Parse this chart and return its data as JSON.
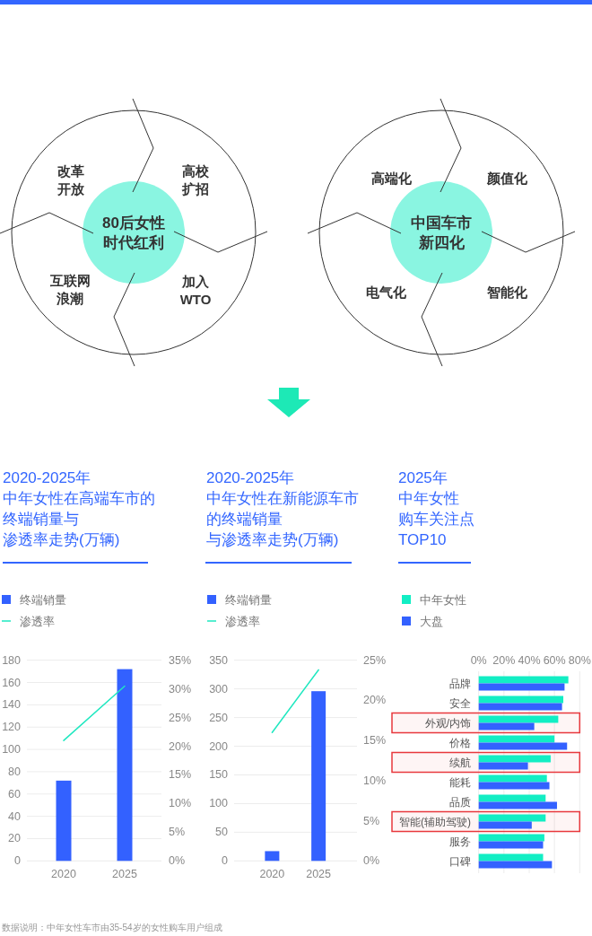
{
  "chart_data": [
    {
      "type": "other",
      "title": "80后女性时代红利",
      "annotations": [
        "改革开放",
        "高校扩招",
        "加入WTO",
        "互联网浪潮"
      ]
    },
    {
      "type": "other",
      "title": "中国车市新四化",
      "annotations": [
        "高端化",
        "颜值化",
        "智能化",
        "电气化"
      ]
    },
    {
      "type": "bar",
      "title": "2020-2025年中年女性在高端车市的终端销量与渗透率走势(万辆)",
      "categories": [
        "2020",
        "2025"
      ],
      "series": [
        {
          "name": "终端销量",
          "type": "bar",
          "color": "#3361ff",
          "values": [
            72,
            172
          ]
        },
        {
          "name": "渗透率",
          "type": "line",
          "axis": "y2",
          "color": "#1ee8c0",
          "values": [
            21,
            30.5
          ]
        }
      ],
      "ylim": [
        0,
        180
      ],
      "yticks": [
        0,
        20,
        40,
        60,
        80,
        100,
        120,
        140,
        160,
        180
      ],
      "y2lim": [
        0,
        35
      ],
      "y2ticks": [
        {
          "value": 0,
          "label": "0%"
        },
        {
          "value": 5,
          "label": "5%"
        },
        {
          "value": 10,
          "label": "10%"
        },
        {
          "value": 15,
          "label": "15%"
        },
        {
          "value": 20,
          "label": "20%"
        },
        {
          "value": 25,
          "label": "25%"
        },
        {
          "value": 30,
          "label": "30%"
        },
        {
          "value": 35,
          "label": "35%"
        }
      ],
      "grid": "y",
      "legend": "top left",
      "annotations": [
        "数据说明：中年女性车市由35-54岁的女性购车用户组成"
      ]
    },
    {
      "type": "bar",
      "title": "2020-2025年中年女性在新能源车市的终端销量与渗透率走势(万辆)",
      "categories": [
        "2020",
        "2025"
      ],
      "series": [
        {
          "name": "终端销量",
          "type": "bar",
          "color": "#3361ff",
          "values": [
            17,
            296
          ]
        },
        {
          "name": "渗透率",
          "type": "line",
          "axis": "y2",
          "color": "#1ee8c0",
          "values": [
            16,
            23.8
          ]
        }
      ],
      "ylim": [
        0,
        350
      ],
      "yticks": [
        0,
        50,
        100,
        150,
        200,
        250,
        300,
        350
      ],
      "y2lim": [
        0,
        25
      ],
      "y2ticks": [
        {
          "value": 0,
          "label": "0%"
        },
        {
          "value": 5,
          "label": "5%"
        },
        {
          "value": 10,
          "label": "10%"
        },
        {
          "value": 15,
          "label": "15%"
        },
        {
          "value": 20,
          "label": "20%"
        },
        {
          "value": 25,
          "label": "25%"
        }
      ],
      "grid": "y",
      "legend": "top left"
    },
    {
      "type": "bar",
      "orientation": "horizontal",
      "title": "2025年中年女性购车关注点TOP10",
      "categories": [
        "品牌",
        "安全",
        "外观/内饰",
        "价格",
        "续航",
        "能耗",
        "品质",
        "智能(辅助驾驶)",
        "服务",
        "口碑"
      ],
      "series": [
        {
          "name": "中年女性",
          "color": "#12eec4",
          "values": [
            71,
            67,
            63,
            60,
            57,
            54,
            53,
            53,
            52,
            51
          ]
        },
        {
          "name": "大盘",
          "color": "#3361ff",
          "values": [
            68,
            66,
            44,
            70,
            39,
            56,
            62,
            42,
            51,
            58
          ]
        }
      ],
      "xlim": [
        0,
        80
      ],
      "xticks": [
        {
          "value": 0,
          "label": "0%"
        },
        {
          "value": 20,
          "label": "20%"
        },
        {
          "value": 40,
          "label": "40%"
        },
        {
          "value": 60,
          "label": "60%"
        },
        {
          "value": 80,
          "label": "80%"
        }
      ],
      "grid": "x",
      "legend": "top left",
      "bands": [
        {
          "axis": "y",
          "from": "外观/内饰",
          "to": "外观/内饰",
          "color": "#e8383d"
        },
        {
          "axis": "y",
          "from": "续航",
          "to": "续航",
          "color": "#e8383d"
        },
        {
          "axis": "y",
          "from": "智能(辅助驾驶)",
          "to": "智能(辅助驾驶)",
          "color": "#e8383d"
        }
      ]
    }
  ]
}
